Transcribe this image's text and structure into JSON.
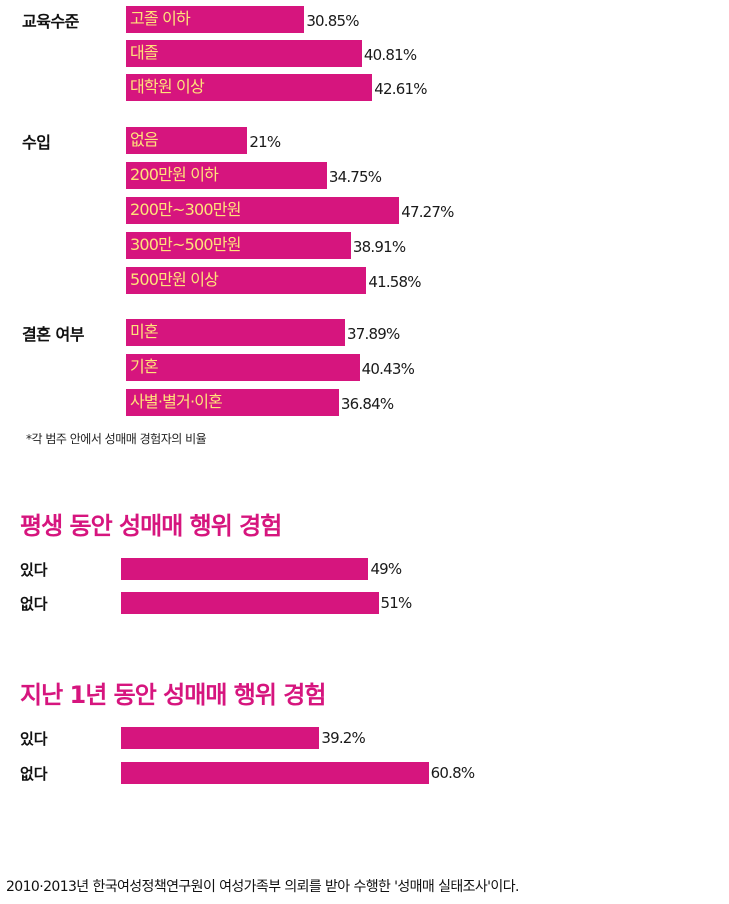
{
  "chart_data": [
    {
      "type": "bar",
      "groups": [
        {
          "label": "교육수준",
          "categories": [
            "고졸 이하",
            "대졸",
            "대학원 이상"
          ],
          "values": [
            30.85,
            40.81,
            42.61
          ],
          "value_labels": [
            "30.85%",
            "40.81%",
            "42.61%"
          ]
        },
        {
          "label": "수입",
          "categories": [
            "없음",
            "200만원 이하",
            "200만~300만원",
            "300만~500만원",
            "500만원 이상"
          ],
          "values": [
            21,
            34.75,
            47.27,
            38.91,
            41.58
          ],
          "value_labels": [
            "21%",
            "34.75%",
            "47.27%",
            "38.91%",
            "41.58%"
          ]
        },
        {
          "label": "결혼 여부",
          "categories": [
            "미혼",
            "기혼",
            "사별·별거·이혼"
          ],
          "values": [
            37.89,
            40.43,
            36.84
          ],
          "value_labels": [
            "37.89%",
            "40.43%",
            "36.84%"
          ]
        }
      ],
      "footnote": "*각 범주 안에서 성매매 경험자의 비율",
      "xlim": [
        0,
        100
      ]
    },
    {
      "type": "bar",
      "title": "평생 동안 성매매 행위 경험",
      "categories": [
        "있다",
        "없다"
      ],
      "values": [
        49,
        51
      ],
      "value_labels": [
        "49%",
        "51%"
      ],
      "xlim": [
        0,
        100
      ]
    },
    {
      "type": "bar",
      "title": "지난 1년 동안 성매매 행위 경험",
      "categories": [
        "있다",
        "없다"
      ],
      "values": [
        39.2,
        60.8
      ],
      "value_labels": [
        "39.2%",
        "60.8%"
      ],
      "xlim": [
        0,
        100
      ]
    }
  ],
  "caption": "2010·2013년 한국여성정책연구원이 여성가족부 의뢰를 받아 수행한 '성매매 실태조사'이다.",
  "colors": {
    "bar": "#d6157e",
    "bar_text": "#ffe27a",
    "title": "#d6157e"
  }
}
